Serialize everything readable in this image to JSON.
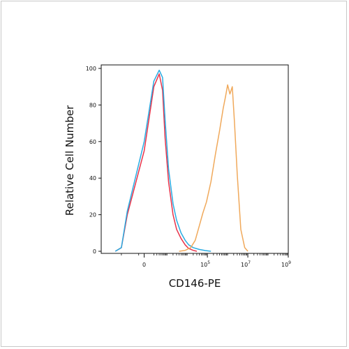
{
  "chart_data": {
    "type": "line",
    "title": "",
    "xlabel": "CD146-PE",
    "ylabel": "Relative Cell Number",
    "x_scale": "biexponential",
    "xlim": [
      -10000,
      1000000000
    ],
    "ylim": [
      0,
      100
    ],
    "y_ticks": [
      "0",
      "20",
      "40",
      "60",
      "80",
      "100"
    ],
    "x_ticks": [
      {
        "base": "0",
        "exp": ""
      },
      {
        "base": "10",
        "exp": "5"
      },
      {
        "base": "10",
        "exp": "7"
      },
      {
        "base": "10",
        "exp": "9"
      }
    ],
    "grid": false,
    "legend": "none",
    "series": [
      {
        "color": "#e8334a",
        "x": [
          -2000,
          -1000,
          -500,
          0,
          200,
          400,
          600,
          800,
          1200,
          2000,
          3000,
          5000,
          8000,
          12000,
          20000,
          30000
        ],
        "y": [
          0,
          2,
          20,
          55,
          90,
          97,
          88,
          62,
          38,
          20,
          12,
          7,
          3.5,
          1.5,
          0.5,
          0
        ]
      },
      {
        "color": "#29abe2",
        "x": [
          -2000,
          -1000,
          -500,
          0,
          200,
          400,
          600,
          800,
          1200,
          2000,
          3000,
          5000,
          8000,
          12000,
          20000,
          40000,
          80000,
          150000
        ],
        "y": [
          0,
          2,
          22,
          60,
          93,
          99,
          95,
          72,
          45,
          26,
          17,
          10,
          6,
          3.5,
          2,
          1,
          0.4,
          0
        ]
      },
      {
        "color": "#f0a95b",
        "x": [
          4000,
          8000,
          15000,
          25000,
          40000,
          60000,
          90000,
          150000,
          250000,
          400000,
          600000,
          800000,
          1000000,
          1300000,
          1700000,
          2200000,
          3000000,
          4500000,
          7000000,
          10000000
        ],
        "y": [
          0,
          0.5,
          2,
          6,
          14,
          21,
          27,
          38,
          53,
          66,
          78,
          85,
          91,
          86,
          90,
          70,
          42,
          12,
          2,
          0
        ]
      }
    ]
  }
}
